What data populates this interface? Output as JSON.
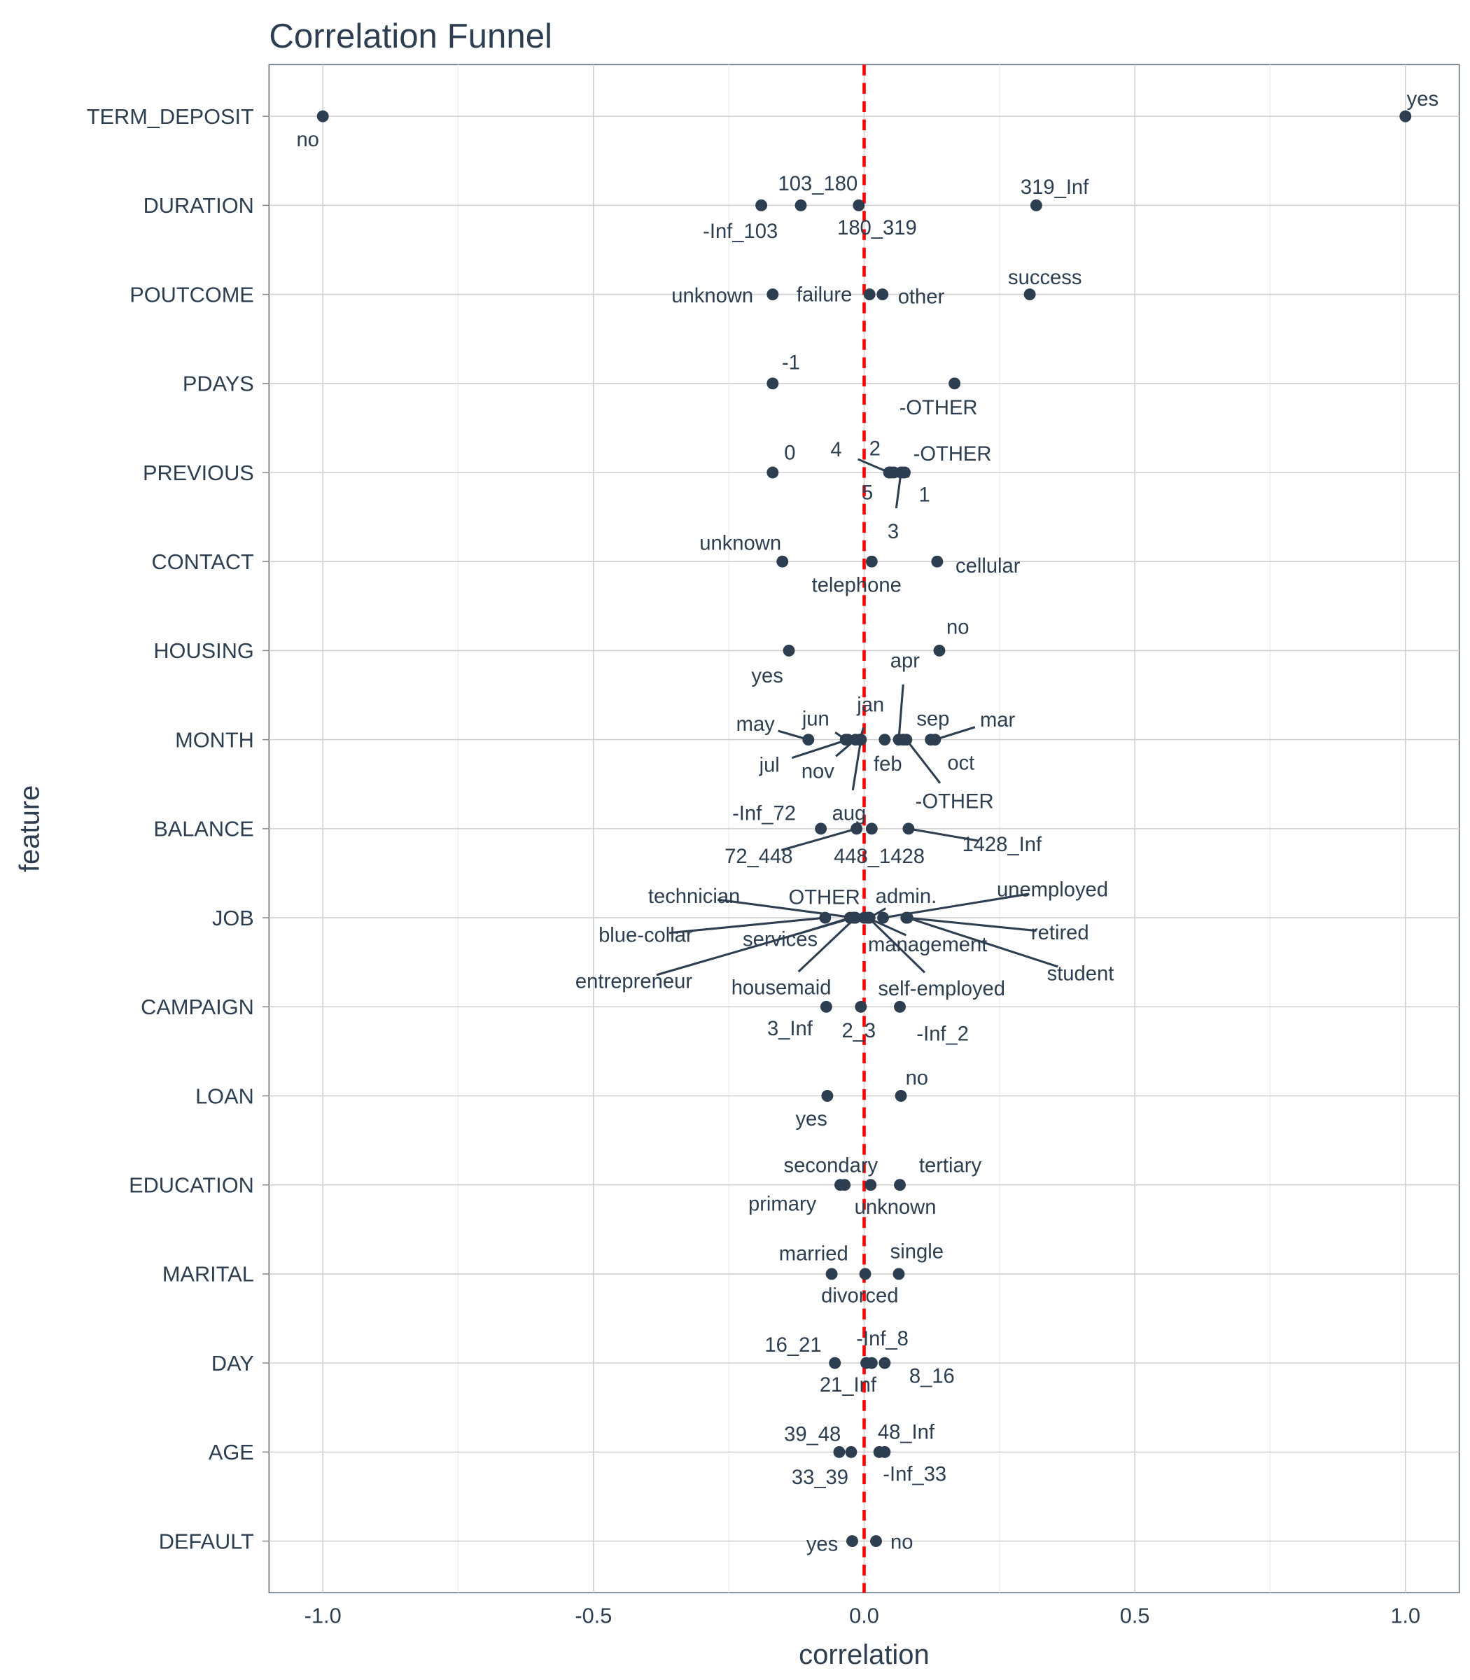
{
  "chart_data": {
    "type": "scatter",
    "title": "Correlation Funnel",
    "xlabel": "correlation",
    "ylabel": "feature",
    "xlim": [
      -1.1,
      1.1
    ],
    "xticks": [
      "-1.0",
      "-0.5",
      "0.0",
      "0.5",
      "1.0"
    ],
    "xtick_values": [
      -1.0,
      -0.5,
      0.0,
      0.5,
      1.0
    ],
    "grid": true,
    "reference_line": {
      "x": 0,
      "color": "#ff0000",
      "style": "dashed"
    },
    "point_color": "#2c3e50",
    "features": [
      {
        "name": "TERM_DEPOSIT",
        "points": [
          {
            "label": "no",
            "x": -1.0
          },
          {
            "label": "yes",
            "x": 1.0
          }
        ]
      },
      {
        "name": "DURATION",
        "points": [
          {
            "label": "-Inf_103",
            "x": -0.19
          },
          {
            "label": "103_180",
            "x": -0.117
          },
          {
            "label": "180_319",
            "x": -0.01
          },
          {
            "label": "319_Inf",
            "x": 0.318
          }
        ]
      },
      {
        "name": "POUTCOME",
        "points": [
          {
            "label": "unknown",
            "x": -0.169
          },
          {
            "label": "failure",
            "x": 0.01
          },
          {
            "label": "other",
            "x": 0.034
          },
          {
            "label": "success",
            "x": 0.306
          }
        ]
      },
      {
        "name": "PDAYS",
        "points": [
          {
            "label": "-1",
            "x": -0.169
          },
          {
            "label": "-OTHER",
            "x": 0.167
          }
        ]
      },
      {
        "name": "PREVIOUS",
        "points": [
          {
            "label": "0",
            "x": -0.169
          },
          {
            "label": "4",
            "x": 0.046
          },
          {
            "label": "2",
            "x": 0.055
          },
          {
            "label": "-OTHER",
            "x": 0.072
          },
          {
            "label": "5",
            "x": 0.05
          },
          {
            "label": "1",
            "x": 0.075
          },
          {
            "label": "3",
            "x": 0.068
          }
        ]
      },
      {
        "name": "CONTACT",
        "points": [
          {
            "label": "unknown",
            "x": -0.151
          },
          {
            "label": "telephone",
            "x": 0.014
          },
          {
            "label": "cellular",
            "x": 0.135
          }
        ]
      },
      {
        "name": "HOUSING",
        "points": [
          {
            "label": "yes",
            "x": -0.139
          },
          {
            "label": "no",
            "x": 0.139
          }
        ]
      },
      {
        "name": "MONTH",
        "points": [
          {
            "label": "may",
            "x": -0.103
          },
          {
            "label": "jun",
            "x": -0.034
          },
          {
            "label": "jan",
            "x": -0.008
          },
          {
            "label": "apr",
            "x": 0.064
          },
          {
            "label": "sep",
            "x": 0.072
          },
          {
            "label": "mar",
            "x": 0.131
          },
          {
            "label": "jul",
            "x": -0.03
          },
          {
            "label": "nov",
            "x": -0.016
          },
          {
            "label": "feb",
            "x": 0.038
          },
          {
            "label": "oct",
            "x": 0.123
          },
          {
            "label": "-OTHER",
            "x": 0.078
          },
          {
            "label": "aug",
            "x": -0.006
          }
        ]
      },
      {
        "name": "BALANCE",
        "points": [
          {
            "label": "-Inf_72",
            "x": -0.08
          },
          {
            "label": "72_448",
            "x": -0.014
          },
          {
            "label": "448_1428",
            "x": 0.014
          },
          {
            "label": "1428_Inf",
            "x": 0.082
          }
        ]
      },
      {
        "name": "JOB",
        "points": [
          {
            "label": "technician",
            "x": -0.018
          },
          {
            "label": "OTHER",
            "x": 0.0
          },
          {
            "label": "admin.",
            "x": 0.01
          },
          {
            "label": "unemployed",
            "x": 0.035
          },
          {
            "label": "blue-collar",
            "x": -0.072
          },
          {
            "label": "services",
            "x": -0.026
          },
          {
            "label": "management",
            "x": 0.006
          },
          {
            "label": "retired",
            "x": 0.078
          },
          {
            "label": "entrepreneur",
            "x": -0.02
          },
          {
            "label": "housemaid",
            "x": -0.016
          },
          {
            "label": "self-employed",
            "x": 0.008
          },
          {
            "label": "student",
            "x": 0.08
          }
        ]
      },
      {
        "name": "CAMPAIGN",
        "points": [
          {
            "label": "3_Inf",
            "x": -0.07
          },
          {
            "label": "2_3",
            "x": -0.006
          },
          {
            "label": "-Inf_2",
            "x": 0.066
          }
        ]
      },
      {
        "name": "LOAN",
        "points": [
          {
            "label": "yes",
            "x": -0.068
          },
          {
            "label": "no",
            "x": 0.068
          }
        ]
      },
      {
        "name": "EDUCATION",
        "points": [
          {
            "label": "secondary",
            "x": -0.036
          },
          {
            "label": "tertiary",
            "x": 0.066
          },
          {
            "label": "primary",
            "x": -0.044
          },
          {
            "label": "unknown",
            "x": 0.012
          }
        ]
      },
      {
        "name": "MARITAL",
        "points": [
          {
            "label": "married",
            "x": -0.06
          },
          {
            "label": "single",
            "x": 0.064
          },
          {
            "label": "divorced",
            "x": 0.002
          }
        ]
      },
      {
        "name": "DAY",
        "points": [
          {
            "label": "16_21",
            "x": -0.054
          },
          {
            "label": "-Inf_8",
            "x": 0.014
          },
          {
            "label": "21_Inf",
            "x": 0.004
          },
          {
            "label": "8_16",
            "x": 0.038
          }
        ]
      },
      {
        "name": "AGE",
        "points": [
          {
            "label": "39_48",
            "x": -0.046
          },
          {
            "label": "48_Inf",
            "x": 0.028
          },
          {
            "label": "33_39",
            "x": -0.024
          },
          {
            "label": "-Inf_33",
            "x": 0.038
          }
        ]
      },
      {
        "name": "DEFAULT",
        "points": [
          {
            "label": "yes",
            "x": -0.022
          },
          {
            "label": "no",
            "x": 0.022
          }
        ]
      }
    ]
  }
}
